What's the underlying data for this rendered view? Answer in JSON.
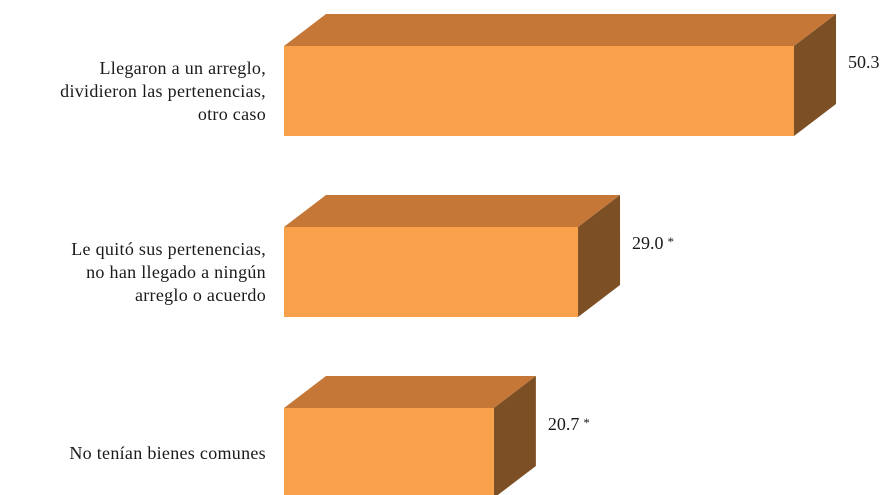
{
  "chart_data": {
    "type": "bar",
    "orientation": "horizontal",
    "style": "3d",
    "categories": [
      [
        "Llegaron a un arreglo,",
        "dividieron las pertenencias,",
        "otro caso"
      ],
      [
        "Le quitó sus pertenencias,",
        "no han llegado a ningún",
        "arreglo o acuerdo"
      ],
      [
        "No tenían bienes comunes"
      ]
    ],
    "values": [
      50.3,
      29.0,
      20.7
    ],
    "value_labels": [
      "50.3",
      "29.0",
      "20.7"
    ],
    "value_marks": [
      "",
      "*",
      "*"
    ],
    "xlim": [
      0,
      50.3
    ],
    "grid": false,
    "colors": {
      "front": "#F9A04A",
      "top": "#C47736",
      "side": "#7D4F25"
    }
  }
}
